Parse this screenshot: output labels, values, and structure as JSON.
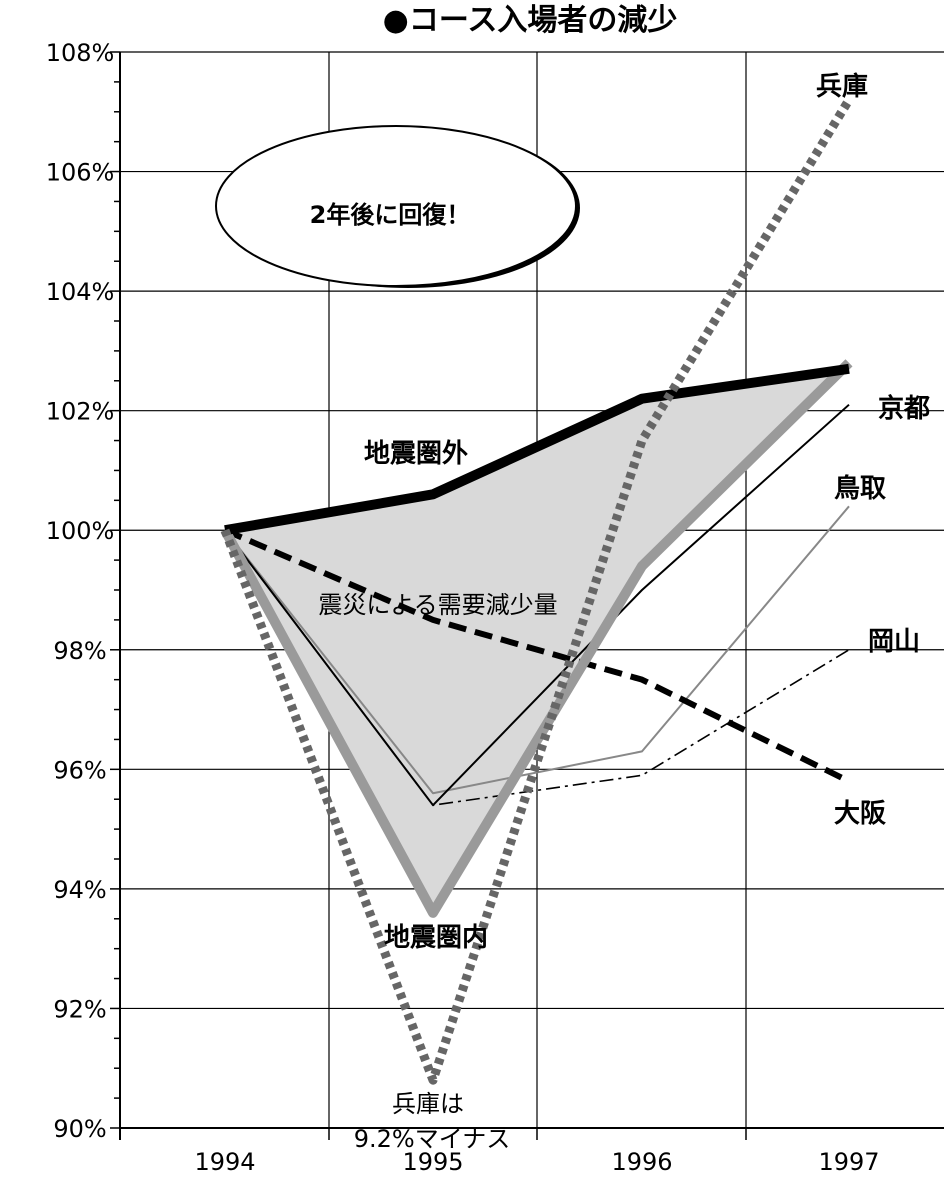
{
  "chart_data": {
    "type": "line",
    "title": "●コース入場者の減少",
    "xlabel": "",
    "ylabel": "",
    "categories": [
      "1994",
      "1995",
      "1996",
      "1997"
    ],
    "ylim": [
      90,
      108
    ],
    "yticks": [
      "90%",
      "92%",
      "94%",
      "96%",
      "98%",
      "100%",
      "102%",
      "104%",
      "106%",
      "108%"
    ],
    "grid": true,
    "series": [
      {
        "name": "兵庫",
        "values": [
          100,
          90.8,
          101.5,
          107.2
        ],
        "color": "#666666",
        "style": "dotted-thick"
      },
      {
        "name": "地震圏外",
        "values": [
          100,
          100.6,
          102.2,
          102.7
        ],
        "color": "#000000",
        "style": "solid-thick"
      },
      {
        "name": "地震圏内",
        "values": [
          100,
          93.6,
          99.4,
          102.8
        ],
        "color": "#9a9a9a",
        "style": "solid-thick"
      },
      {
        "name": "京都",
        "values": [
          100,
          95.4,
          99.0,
          102.1
        ],
        "color": "#000000",
        "style": "solid-thin"
      },
      {
        "name": "鳥取",
        "values": [
          100,
          95.6,
          96.3,
          100.4
        ],
        "color": "#888888",
        "style": "solid-thin"
      },
      {
        "name": "岡山",
        "values": [
          100,
          95.4,
          95.9,
          98.0
        ],
        "color": "#000000",
        "style": "dashdot-thin"
      },
      {
        "name": "大阪",
        "values": [
          100,
          98.5,
          97.5,
          95.8
        ],
        "color": "#000000",
        "style": "dashed-thick"
      }
    ],
    "annotations": {
      "recovery": "2年後に回復！",
      "demand_loss": "震災による需要減少量",
      "hyogo_note_1": "兵庫は",
      "hyogo_note_2": "9.2%マイナス"
    }
  }
}
